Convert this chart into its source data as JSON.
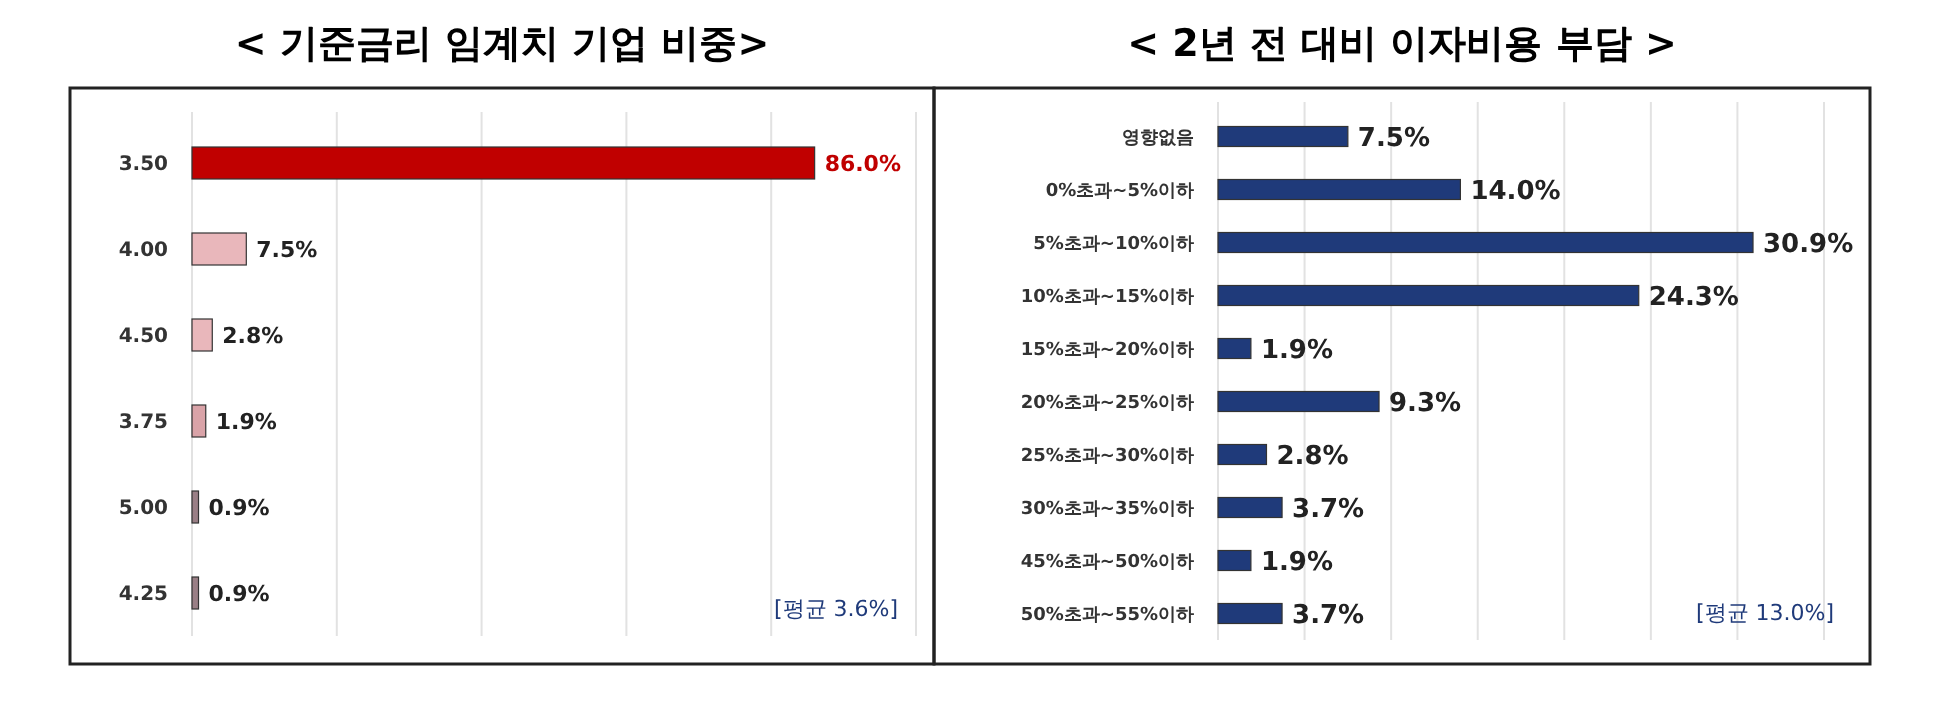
{
  "chart_data": [
    {
      "type": "bar",
      "title": "< 기준금리 임계치 기업 비중>",
      "orientation": "horizontal",
      "categories": [
        "3.50",
        "4.00",
        "4.50",
        "3.75",
        "5.00",
        "4.25"
      ],
      "values": [
        86.0,
        7.5,
        2.8,
        1.9,
        0.9,
        0.9
      ],
      "colors": [
        "#c00000",
        "#e9b7bb",
        "#e9b7bb",
        "#d9a3a8",
        "#9a7f86",
        "#9a7f86"
      ],
      "value_labels": [
        "86.0%",
        "7.5%",
        "2.8%",
        "1.9%",
        "0.9%",
        "0.9%"
      ],
      "xlim": [
        0,
        100
      ],
      "xticks": [
        {
          "value": 0,
          "label": null
        },
        {
          "value": 20,
          "label": null
        },
        {
          "value": 40,
          "label": null
        },
        {
          "value": 60,
          "label": null
        },
        {
          "value": 80,
          "label": null
        },
        {
          "value": 100,
          "label": null
        }
      ],
      "grid": "x",
      "tick_labels": "y",
      "annotations": [
        "[평균 3.6%]"
      ]
    },
    {
      "type": "bar",
      "title": "< 2년 전 대비 이자비용 부담 >",
      "orientation": "horizontal",
      "categories": [
        "영향없음",
        "0%초과~5%이하",
        "5%초과~10%이하",
        "10%초과~15%이하",
        "15%초과~20%이하",
        "20%초과~25%이하",
        "25%초과~30%이하",
        "30%초과~35%이하",
        "45%초과~50%이하",
        "50%초과~55%이하"
      ],
      "values": [
        7.5,
        14.0,
        30.9,
        24.3,
        1.9,
        9.3,
        2.8,
        3.7,
        1.9,
        3.7
      ],
      "color": "#1f3a7a",
      "value_labels": [
        "7.5%",
        "14.0%",
        "30.9%",
        "24.3%",
        "1.9%",
        "9.3%",
        "2.8%",
        "3.7%",
        "1.9%",
        "3.7%"
      ],
      "xlim": [
        0,
        35
      ],
      "xticks": [
        {
          "value": 0,
          "label": null
        },
        {
          "value": 5,
          "label": null
        },
        {
          "value": 10,
          "label": null
        },
        {
          "value": 15,
          "label": null
        },
        {
          "value": 20,
          "label": null
        },
        {
          "value": 25,
          "label": null
        },
        {
          "value": 30,
          "label": null
        },
        {
          "value": 35,
          "label": null
        }
      ],
      "grid": "x",
      "tick_labels": "y",
      "annotations": [
        "[평균 13.0%]"
      ]
    }
  ]
}
